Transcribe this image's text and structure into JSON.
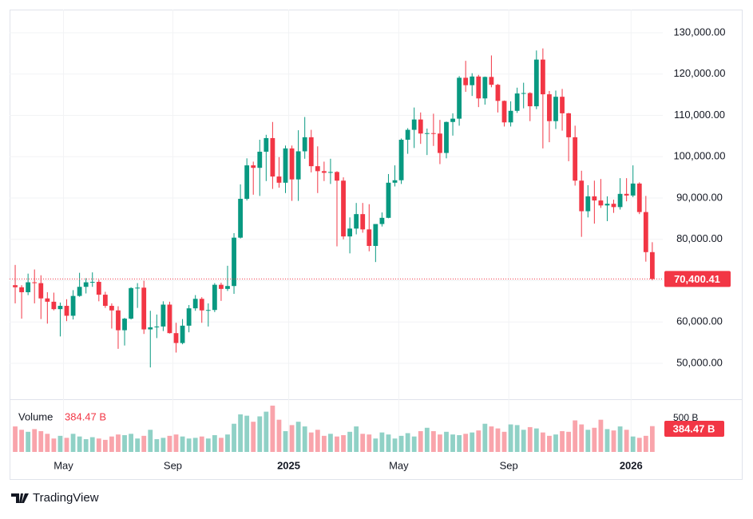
{
  "chart_data": {
    "type": "candlestick",
    "up_color": "#089981",
    "down_color": "#f23645",
    "open": [
      68900,
      68400,
      67200,
      69600,
      69400,
      65700,
      64900,
      63100,
      63900,
      61500,
      66300,
      68500,
      69600,
      69700,
      66600,
      63900,
      62800,
      58000,
      60800,
      68200,
      68300,
      58200,
      58700,
      58900,
      64200,
      57300,
      54900,
      59100,
      63300,
      65600,
      62800,
      62900,
      69000,
      68000,
      68700,
      80400,
      89800,
      97900,
      97300,
      101200,
      104500,
      95200,
      93700,
      102000,
      94500,
      101300,
      104700,
      97700,
      96500,
      96100,
      96300,
      94200,
      80700,
      82600,
      86100,
      82400,
      78400,
      83700,
      85200,
      93700,
      94300,
      104100,
      106500,
      109000,
      105600,
      105700,
      105600,
      100900,
      108400,
      109200,
      119100,
      117300,
      119400,
      114100,
      119300,
      117400,
      113500,
      108300,
      111100,
      115300,
      115400,
      112200,
      123500,
      115100,
      108600,
      114500,
      110500,
      104700,
      94200,
      86800,
      90400,
      89400,
      88200,
      88600,
      87800,
      91000,
      90600,
      93500,
      86600,
      76900
    ],
    "high": [
      73800,
      68900,
      71700,
      72700,
      71300,
      67200,
      67100,
      64700,
      65500,
      67700,
      71900,
      70600,
      72000,
      70200,
      67300,
      64500,
      63800,
      61000,
      68400,
      69400,
      70000,
      62700,
      61800,
      65000,
      64900,
      59800,
      60700,
      64100,
      66500,
      66000,
      64500,
      69400,
      69500,
      73600,
      81500,
      93300,
      99600,
      98800,
      104100,
      105300,
      108400,
      99900,
      102700,
      102700,
      106400,
      109600,
      106500,
      102500,
      98800,
      99500,
      96500,
      95000,
      85300,
      88800,
      88800,
      88500,
      83600,
      86500,
      95800,
      97900,
      104400,
      106900,
      111900,
      110700,
      106800,
      110400,
      108900,
      108500,
      110500,
      119500,
      123200,
      120200,
      119800,
      119400,
      124500,
      117600,
      113600,
      113400,
      116700,
      117900,
      115600,
      125700,
      126200,
      115900,
      116000,
      116400,
      110600,
      107500,
      96600,
      93100,
      94200,
      94600,
      90400,
      89600,
      94800,
      94800,
      97900,
      93800,
      90500,
      79300
    ],
    "low": [
      64500,
      60800,
      66500,
      64500,
      60700,
      59600,
      62800,
      56500,
      60200,
      60600,
      66100,
      66900,
      68500,
      65000,
      63400,
      58400,
      53500,
      54300,
      60600,
      63400,
      57100,
      49000,
      56100,
      57800,
      57200,
      52600,
      54600,
      57500,
      62700,
      59800,
      58900,
      62400,
      65100,
      67500,
      66800,
      80200,
      89400,
      90800,
      90500,
      94100,
      92200,
      92500,
      91200,
      89300,
      89300,
      99500,
      96200,
      91200,
      94100,
      93400,
      78300,
      80000,
      76600,
      81200,
      81600,
      77100,
      74500,
      83100,
      85100,
      92800,
      93400,
      100700,
      102100,
      103100,
      100400,
      102600,
      98200,
      99600,
      105100,
      107500,
      115700,
      114700,
      112000,
      112600,
      116800,
      110700,
      107300,
      107300,
      110600,
      111700,
      108600,
      111500,
      102000,
      103500,
      106700,
      106300,
      98900,
      93000,
      80600,
      85300,
      83800,
      87600,
      84400,
      86400,
      87200,
      89200,
      90200,
      86100,
      74600,
      70100
    ],
    "close": [
      68400,
      67200,
      69600,
      69400,
      65700,
      64900,
      63100,
      63900,
      61500,
      66300,
      68500,
      69600,
      69700,
      66600,
      63900,
      62800,
      58000,
      60800,
      68200,
      68300,
      58200,
      58700,
      58900,
      64200,
      57300,
      54900,
      59100,
      63300,
      65600,
      62800,
      62900,
      69000,
      68000,
      68700,
      80400,
      89800,
      97900,
      97300,
      101200,
      104500,
      95200,
      93700,
      102000,
      94500,
      101300,
      104700,
      97700,
      96500,
      96100,
      96300,
      94200,
      80700,
      82600,
      86100,
      82400,
      78400,
      83700,
      85200,
      93700,
      94300,
      104100,
      106500,
      109000,
      105600,
      105700,
      105600,
      100900,
      108400,
      109200,
      119100,
      117300,
      119400,
      114100,
      119300,
      117400,
      113500,
      108300,
      111100,
      115300,
      115400,
      112200,
      123500,
      115100,
      108600,
      114500,
      110500,
      104700,
      94200,
      86800,
      90400,
      89400,
      88200,
      88600,
      87800,
      91000,
      90600,
      93500,
      86600,
      76900,
      70400.41
    ],
    "last_label": "70,400.41",
    "ylim": [
      41300,
      135600
    ],
    "yticks": [
      {
        "value": 50000,
        "label": "50,000.00"
      },
      {
        "value": 60000,
        "label": "60,000.00"
      },
      {
        "value": 70000,
        "label": "70,000.00"
      },
      {
        "value": 80000,
        "label": "80,000.00"
      },
      {
        "value": 90000,
        "label": "90,000.00"
      },
      {
        "value": 100000,
        "label": "100,000.00"
      },
      {
        "value": 110000,
        "label": "110,000.00"
      },
      {
        "value": 120000,
        "label": "120,000.00"
      },
      {
        "value": 130000,
        "label": "130,000.00"
      }
    ],
    "xlim": [
      -0.5,
      101
    ],
    "xticks": [
      {
        "value": 7.5,
        "label": "May"
      },
      {
        "value": 24.5,
        "label": "Sep"
      },
      {
        "value": 42.5,
        "label": "2025"
      },
      {
        "value": 59.6,
        "label": "May"
      },
      {
        "value": 76.7,
        "label": "Sep"
      },
      {
        "value": 95.7,
        "label": "2026"
      }
    ],
    "grid": true,
    "volume": {
      "name": "Volume",
      "values": [
        380,
        330,
        300,
        340,
        310,
        270,
        200,
        240,
        210,
        270,
        230,
        190,
        220,
        200,
        180,
        230,
        260,
        250,
        270,
        200,
        240,
        330,
        190,
        210,
        240,
        260,
        230,
        200,
        210,
        230,
        200,
        250,
        210,
        260,
        420,
        560,
        540,
        450,
        530,
        600,
        690,
        480,
        310,
        400,
        450,
        380,
        290,
        330,
        240,
        270,
        230,
        250,
        300,
        380,
        270,
        260,
        200,
        290,
        260,
        200,
        240,
        280,
        230,
        310,
        360,
        310,
        260,
        300,
        260,
        250,
        270,
        290,
        320,
        420,
        380,
        350,
        300,
        410,
        400,
        330,
        370,
        350,
        290,
        240,
        260,
        310,
        300,
        470,
        410,
        330,
        360,
        480,
        340,
        320,
        380,
        330,
        230,
        210,
        240,
        384.47
      ],
      "last_label": "384.47 B",
      "ylim": [
        0,
        726
      ],
      "yticks": [
        {
          "value": 500,
          "label": "500 B"
        }
      ]
    }
  },
  "footer": {
    "brand": "TradingView"
  }
}
